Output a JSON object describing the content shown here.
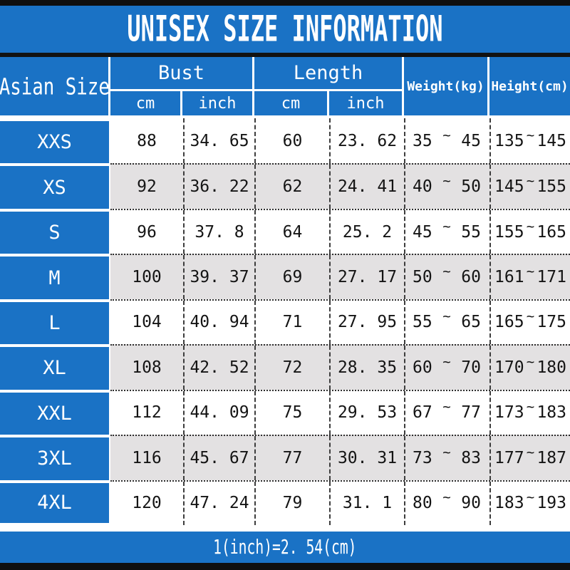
{
  "header": {
    "title": "UNISEX SIZE INFORMATION"
  },
  "table": {
    "headers": {
      "asian_size": "Asian Size",
      "bust": "Bust",
      "length": "Length",
      "weight": "Weight(kg)",
      "height": "Height(cm)",
      "cm": "cm",
      "inch": "inch"
    },
    "symbols": {
      "tilde": "~"
    },
    "rows": [
      {
        "size": "XXS",
        "bust_cm": "88",
        "bust_inch": "34. 65",
        "length_cm": "60",
        "length_inch": "23. 62",
        "weight_min": "35",
        "weight_max": "45",
        "height_min": "135",
        "height_max": "145"
      },
      {
        "size": "XS",
        "bust_cm": "92",
        "bust_inch": "36. 22",
        "length_cm": "62",
        "length_inch": "24. 41",
        "weight_min": "40",
        "weight_max": "50",
        "height_min": "145",
        "height_max": "155"
      },
      {
        "size": "S",
        "bust_cm": "96",
        "bust_inch": "37. 8",
        "length_cm": "64",
        "length_inch": "25. 2",
        "weight_min": "45",
        "weight_max": "55",
        "height_min": "155",
        "height_max": "165"
      },
      {
        "size": "M",
        "bust_cm": "100",
        "bust_inch": "39. 37",
        "length_cm": "69",
        "length_inch": "27. 17",
        "weight_min": "50",
        "weight_max": "60",
        "height_min": "161",
        "height_max": "171"
      },
      {
        "size": "L",
        "bust_cm": "104",
        "bust_inch": "40. 94",
        "length_cm": "71",
        "length_inch": "27. 95",
        "weight_min": "55",
        "weight_max": "65",
        "height_min": "165",
        "height_max": "175"
      },
      {
        "size": "XL",
        "bust_cm": "108",
        "bust_inch": "42. 52",
        "length_cm": "72",
        "length_inch": "28. 35",
        "weight_min": "60",
        "weight_max": "70",
        "height_min": "170",
        "height_max": "180"
      },
      {
        "size": "XXL",
        "bust_cm": "112",
        "bust_inch": "44. 09",
        "length_cm": "75",
        "length_inch": "29. 53",
        "weight_min": "67",
        "weight_max": "77",
        "height_min": "173",
        "height_max": "183"
      },
      {
        "size": "3XL",
        "bust_cm": "116",
        "bust_inch": "45. 67",
        "length_cm": "77",
        "length_inch": "30. 31",
        "weight_min": "73",
        "weight_max": "83",
        "height_min": "177",
        "height_max": "187"
      },
      {
        "size": "4XL",
        "bust_cm": "120",
        "bust_inch": "47. 24",
        "length_cm": "79",
        "length_inch": "31. 1",
        "weight_min": "80",
        "weight_max": "90",
        "height_min": "183",
        "height_max": "193"
      }
    ]
  },
  "footer": {
    "note": "1(inch)=2. 54(cm)"
  },
  "colors": {
    "blue": "#1a72c5",
    "alt_row": "#e3e1e2",
    "bar_black": "#0f0f0f"
  }
}
